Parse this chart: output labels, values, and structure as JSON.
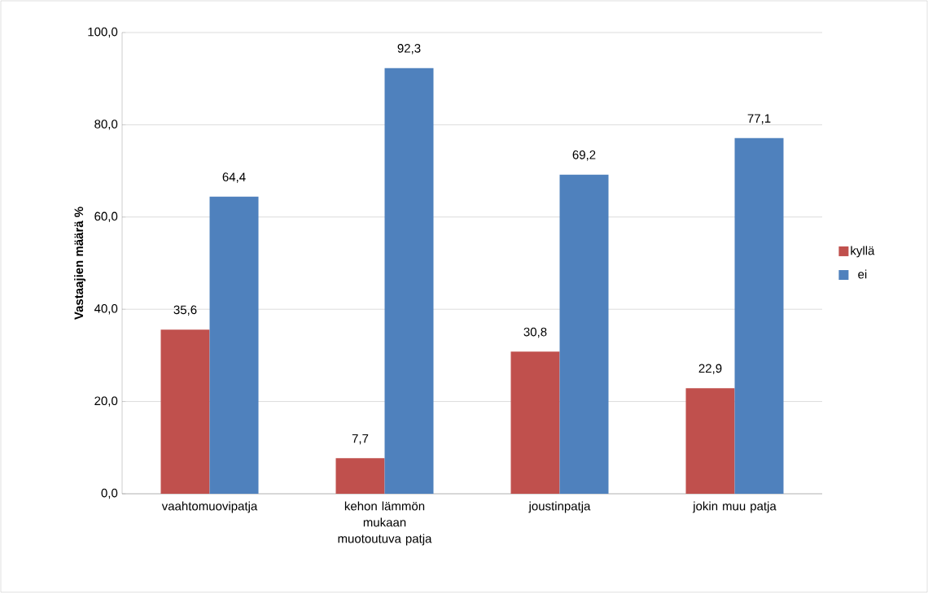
{
  "chart_data": {
    "type": "bar",
    "ylabel": "Vastaajien määrä %",
    "categories": [
      "vaahtomuovipatja",
      "kehon lämmön mukaan muotoutuva patja",
      "joustinpatja",
      "jokin muu patja"
    ],
    "series": [
      {
        "name": "kyllä",
        "color": "#c0504d",
        "values": [
          35.6,
          7.7,
          30.8,
          22.9
        ],
        "value_labels": [
          "35,6",
          "7,7",
          "30,8",
          "22,9"
        ]
      },
      {
        "name": "ei",
        "color": "#4f81bd",
        "values": [
          64.4,
          92.3,
          69.2,
          77.1
        ],
        "value_labels": [
          "64,4",
          "92,3",
          "69,2",
          "77,1"
        ]
      }
    ],
    "ylim": [
      0,
      100
    ],
    "yticks": [
      {
        "value": 0,
        "label": "0,0"
      },
      {
        "value": 20,
        "label": "20,0"
      },
      {
        "value": 40,
        "label": "40,0"
      },
      {
        "value": 60,
        "label": "60,0"
      },
      {
        "value": 80,
        "label": "80,0"
      },
      {
        "value": 100,
        "label": "100,0"
      }
    ],
    "grid": "y",
    "legend": "right"
  }
}
